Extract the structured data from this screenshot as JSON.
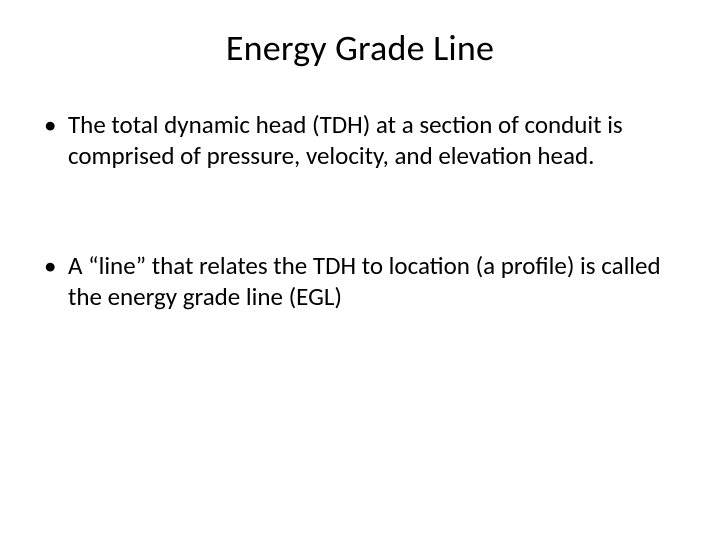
{
  "title": "Energy Grade Line",
  "bullets": [
    "The total dynamic head (TDH) at a section of conduit is comprised of pressure, velocity, and elevation head.",
    "A “line” that relates the TDH to location (a profile) is called the energy grade line (EGL)"
  ],
  "colors": {
    "background": "#ffffff",
    "text": "#000000"
  },
  "typography": {
    "title_fontsize": 36,
    "body_fontsize": 25,
    "font_family": "Calibri"
  }
}
